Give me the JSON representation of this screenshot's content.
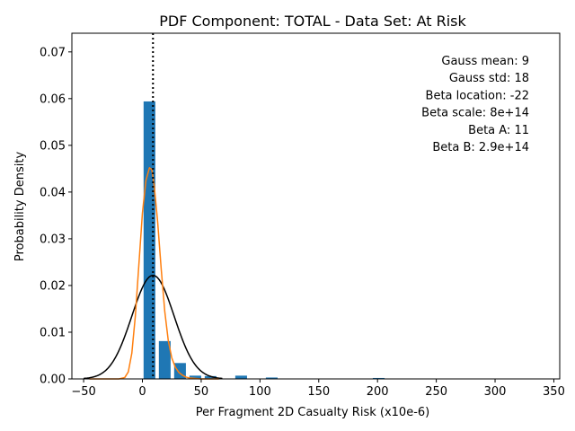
{
  "chart_data": {
    "type": "bar",
    "title": "PDF Component: TOTAL - Data Set: At Risk",
    "xlabel": "Per Fragment 2D Casualty Risk (x10e-6)",
    "ylabel": "Probability Density",
    "xlim": [
      -60,
      355
    ],
    "ylim": [
      0,
      0.074
    ],
    "xticks": [
      -50,
      0,
      50,
      100,
      150,
      200,
      250,
      300,
      350
    ],
    "yticks": [
      0.0,
      0.01,
      0.02,
      0.03,
      0.04,
      0.05,
      0.06,
      0.07
    ],
    "xtick_labels": [
      "−50",
      "0",
      "50",
      "100",
      "150",
      "200",
      "250",
      "300",
      "350"
    ],
    "ytick_labels": [
      "0.00",
      "0.01",
      "0.02",
      "0.03",
      "0.04",
      "0.05",
      "0.06",
      "0.07"
    ],
    "grid": false,
    "bars": {
      "color": "#1f77b4",
      "width": 10,
      "centers": [
        6,
        19,
        32,
        45,
        58,
        71,
        84,
        97,
        110,
        123,
        136,
        149,
        162,
        175,
        188,
        201
      ],
      "values": [
        0.0594,
        0.0081,
        0.0034,
        0.0007,
        0.0006,
        0.0,
        0.0007,
        0.0,
        0.0003,
        0.0,
        0.0,
        0.0,
        0.0,
        0.0,
        0.0,
        0.0002
      ]
    },
    "series": [
      {
        "kind": "gauss",
        "color": "#000000",
        "mean": 9,
        "std": 18,
        "x_range": [
          -50,
          68
        ],
        "values_note": ""
      },
      {
        "kind": "beta",
        "color": "#ff7f0e",
        "x": [
          -45,
          -20,
          -15,
          -12,
          -9,
          -6,
          -3,
          0,
          3,
          6,
          8,
          10,
          13,
          16,
          19,
          22,
          25,
          28,
          31,
          34,
          37,
          40,
          45,
          50,
          55,
          60,
          65
        ],
        "values": [
          0.0,
          0.0,
          0.0003,
          0.0015,
          0.0055,
          0.0135,
          0.0245,
          0.0355,
          0.0425,
          0.0452,
          0.0448,
          0.0415,
          0.0335,
          0.0235,
          0.0145,
          0.0082,
          0.0045,
          0.0025,
          0.0014,
          0.0008,
          0.0004,
          0.0002,
          0.0001,
          0.0,
          0.0,
          0.0,
          0.0
        ]
      }
    ],
    "vline": {
      "x": 9,
      "style": "dotted",
      "color": "#000000"
    },
    "annotations": [
      "Gauss mean: 9",
      "Gauss std: 18",
      "Beta location: -22",
      "Beta scale: 8e+14",
      "Beta A: 11",
      "Beta B: 2.9e+14"
    ]
  }
}
